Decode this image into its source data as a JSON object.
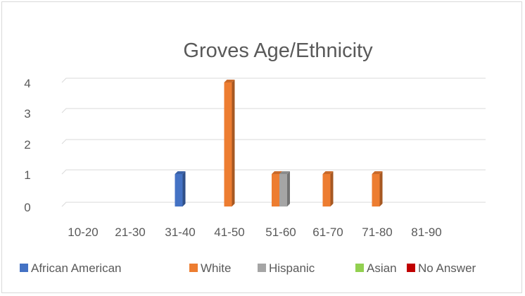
{
  "chart_data": {
    "type": "bar",
    "title": "Groves Age/Ethnicity",
    "xlabel": "",
    "ylabel": "",
    "categories": [
      "10-20",
      "21-30",
      "31-40",
      "41-50",
      "51-60",
      "61-70",
      "71-80",
      "81-90"
    ],
    "y_ticks": [
      "0",
      "1",
      "2",
      "3",
      "4"
    ],
    "ylim": [
      0,
      4
    ],
    "y_scale": "nonlinear (ticks 0-4 shown; 1 is near bottom)",
    "series": [
      {
        "name": "African American",
        "color": "#4472c4",
        "values": [
          0,
          0,
          1,
          0,
          0,
          0,
          0,
          0
        ]
      },
      {
        "name": "White",
        "color": "#ed7d31",
        "values": [
          0,
          0,
          0,
          4,
          1,
          1,
          1,
          0
        ]
      },
      {
        "name": "Hispanic",
        "color": "#a5a5a5",
        "values": [
          0,
          0,
          0,
          0,
          1,
          0,
          0,
          0
        ]
      },
      {
        "name": "Asian",
        "color": "#92d050",
        "values": [
          0,
          0,
          0,
          0,
          0,
          0,
          0,
          0
        ]
      },
      {
        "name": "No Answer",
        "color": "#c00000",
        "values": [
          0,
          0,
          0,
          0,
          0,
          0,
          0,
          0
        ]
      }
    ],
    "grid": true,
    "legend_position": "bottom"
  }
}
